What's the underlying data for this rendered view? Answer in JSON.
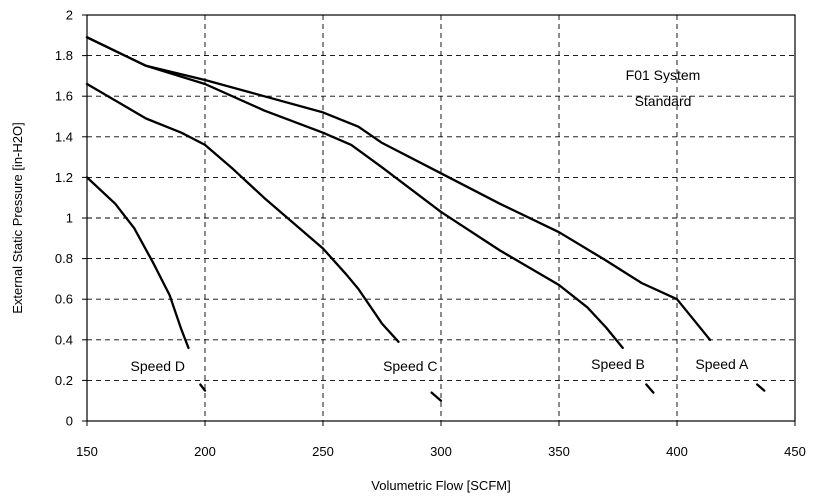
{
  "chart_data": {
    "type": "line",
    "title": "",
    "xlabel": "Volumetric Flow [SCFM]",
    "ylabel": "External Static Pressure [in-H2O]",
    "xlim": [
      150,
      450
    ],
    "ylim": [
      0,
      2
    ],
    "xticks": [
      "150",
      "200",
      "250",
      "300",
      "350",
      "400",
      "450"
    ],
    "yticks": [
      "0",
      "0.2",
      "0.4",
      "0.6",
      "0.8",
      "1",
      "1.2",
      "1.4",
      "1.6",
      "1.8",
      "2"
    ],
    "grid": true,
    "annotations": [
      "F01 System",
      "Standard"
    ],
    "series": [
      {
        "name": "Speed A",
        "points": [
          [
            150,
            1.89
          ],
          [
            175,
            1.75
          ],
          [
            200,
            1.68
          ],
          [
            225,
            1.6
          ],
          [
            250,
            1.52
          ],
          [
            265,
            1.45
          ],
          [
            275,
            1.37
          ],
          [
            300,
            1.22
          ],
          [
            325,
            1.07
          ],
          [
            350,
            0.93
          ],
          [
            370,
            0.79
          ],
          [
            385,
            0.68
          ],
          [
            400,
            0.6
          ],
          [
            414,
            0.4
          ]
        ],
        "tail": [
          [
            434,
            0.18
          ],
          [
            437,
            0.15
          ]
        ]
      },
      {
        "name": "Speed B",
        "points": [
          [
            150,
            1.89
          ],
          [
            175,
            1.75
          ],
          [
            200,
            1.66
          ],
          [
            225,
            1.53
          ],
          [
            250,
            1.42
          ],
          [
            262,
            1.36
          ],
          [
            275,
            1.25
          ],
          [
            300,
            1.03
          ],
          [
            325,
            0.84
          ],
          [
            350,
            0.67
          ],
          [
            362,
            0.56
          ],
          [
            370,
            0.46
          ],
          [
            377,
            0.36
          ]
        ],
        "tail": [
          [
            387,
            0.18
          ],
          [
            390,
            0.14
          ]
        ]
      },
      {
        "name": "Speed C",
        "points": [
          [
            150,
            1.66
          ],
          [
            175,
            1.49
          ],
          [
            190,
            1.42
          ],
          [
            200,
            1.36
          ],
          [
            212,
            1.24
          ],
          [
            225,
            1.1
          ],
          [
            250,
            0.85
          ],
          [
            260,
            0.72
          ],
          [
            265,
            0.65
          ],
          [
            275,
            0.48
          ],
          [
            282,
            0.39
          ]
        ],
        "tail": [
          [
            296,
            0.14
          ],
          [
            300,
            0.1
          ]
        ]
      },
      {
        "name": "Speed D",
        "points": [
          [
            150,
            1.2
          ],
          [
            162,
            1.07
          ],
          [
            170,
            0.95
          ],
          [
            178,
            0.78
          ],
          [
            185,
            0.62
          ],
          [
            190,
            0.45
          ],
          [
            193,
            0.36
          ]
        ],
        "tail": [
          [
            198,
            0.18
          ],
          [
            200,
            0.15
          ]
        ]
      }
    ],
    "labels": [
      {
        "text": "Speed D",
        "x": 180,
        "y": 0.27
      },
      {
        "text": "Speed C",
        "x": 287,
        "y": 0.27
      },
      {
        "text": "Speed B",
        "x": 375,
        "y": 0.28
      },
      {
        "text": "Speed A",
        "x": 419,
        "y": 0.28
      }
    ]
  }
}
